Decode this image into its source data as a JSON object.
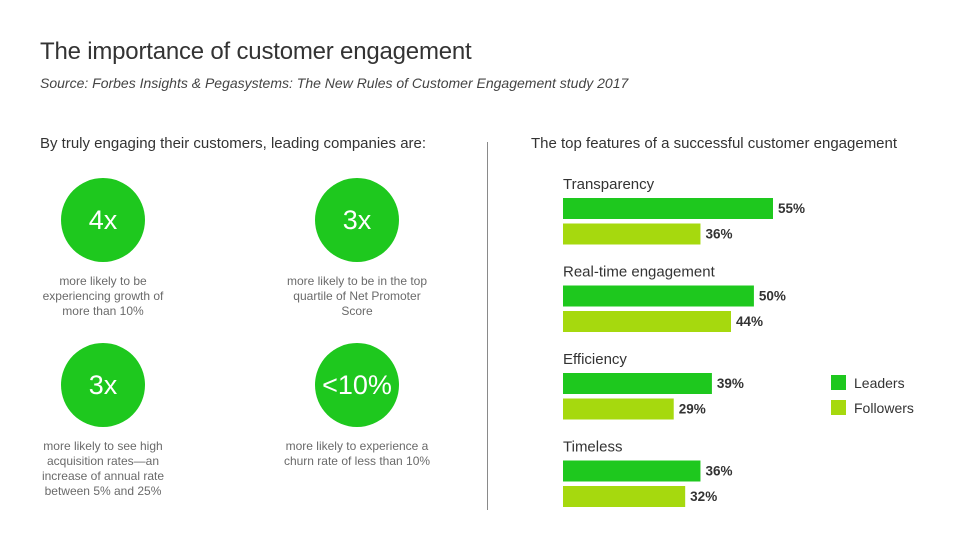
{
  "title": "The importance of customer engagement",
  "subtitle": "Source: Forbes Insights & Pegasystems: The New Rules of Customer Engagement study 2017",
  "left": {
    "heading": "By truly engaging their customers, leading companies are:",
    "stats": [
      {
        "value": "4x",
        "desc": "more likely to be experiencing growth of more than 10%"
      },
      {
        "value": "3x",
        "desc": "more likely to be in the top quartile of Net Promoter Score"
      },
      {
        "value": "3x",
        "desc": "more likely to see high acquisition rates—an increase of annual rate between 5% and 25%"
      },
      {
        "value": "<10%",
        "desc": "more likely to experience a churn rate of less than 10%"
      }
    ]
  },
  "right": {
    "heading": "The top features of a successful customer engagement"
  },
  "colors": {
    "leaders": "#1ec81e",
    "followers": "#a6d90e",
    "circle": "#1ec81e"
  },
  "chart_data": {
    "type": "bar",
    "orientation": "horizontal",
    "categories": [
      "Transparency",
      "Real-time engagement",
      "Efficiency",
      "Timeless"
    ],
    "series": [
      {
        "name": "Leaders",
        "values": [
          55,
          50,
          39,
          36
        ],
        "labels": [
          "55%",
          "50%",
          "39%",
          "36%"
        ]
      },
      {
        "name": "Followers",
        "values": [
          36,
          44,
          29,
          32
        ],
        "labels": [
          "36%",
          "44%",
          "29%",
          "32%"
        ]
      }
    ],
    "legend_position": "right",
    "grid": false
  }
}
